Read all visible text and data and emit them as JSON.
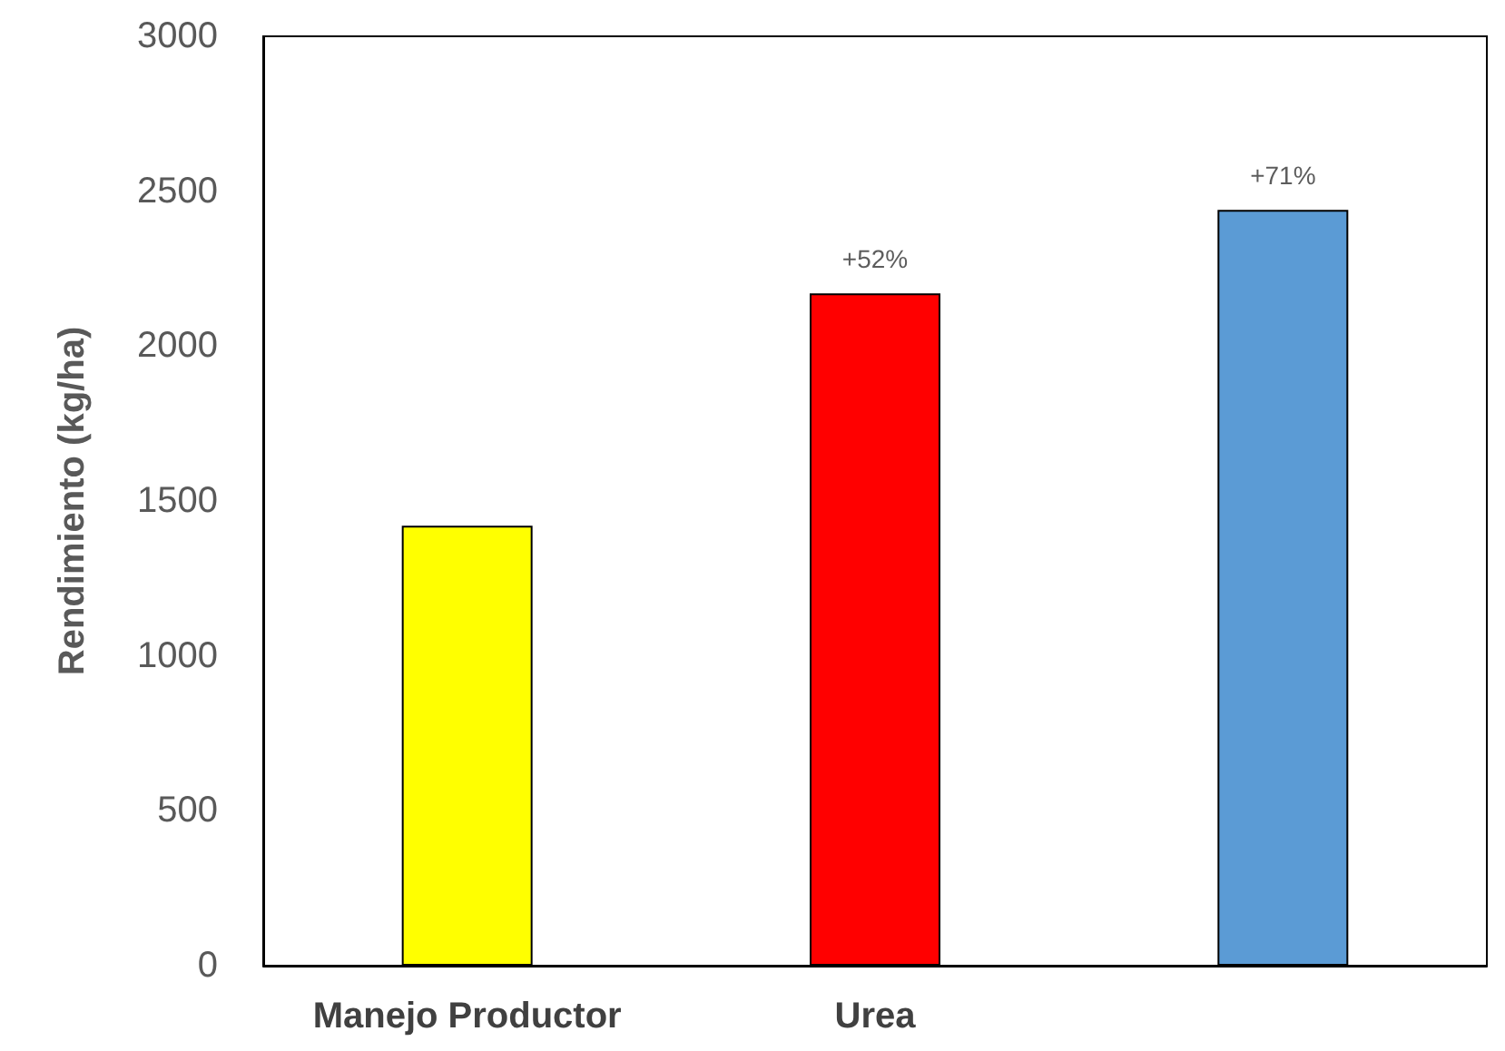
{
  "chart_data": {
    "type": "bar",
    "ylabel": "Rendimiento (kg/ha)",
    "categories": [
      "Manejo Productor",
      "Urea",
      null
    ],
    "values": [
      1420,
      2170,
      2440
    ],
    "colors": [
      "#ffff00",
      "#ff0000",
      "#5b9bd5"
    ],
    "annotations": [
      {
        "text": "+52%",
        "x": "Urea",
        "y": 2170
      },
      {
        "text": "+71%",
        "y": 2440
      }
    ],
    "ylim": [
      0,
      3000
    ],
    "yticks": [
      0,
      500,
      1000,
      1500,
      2000,
      2500,
      3000
    ],
    "grid": false
  }
}
